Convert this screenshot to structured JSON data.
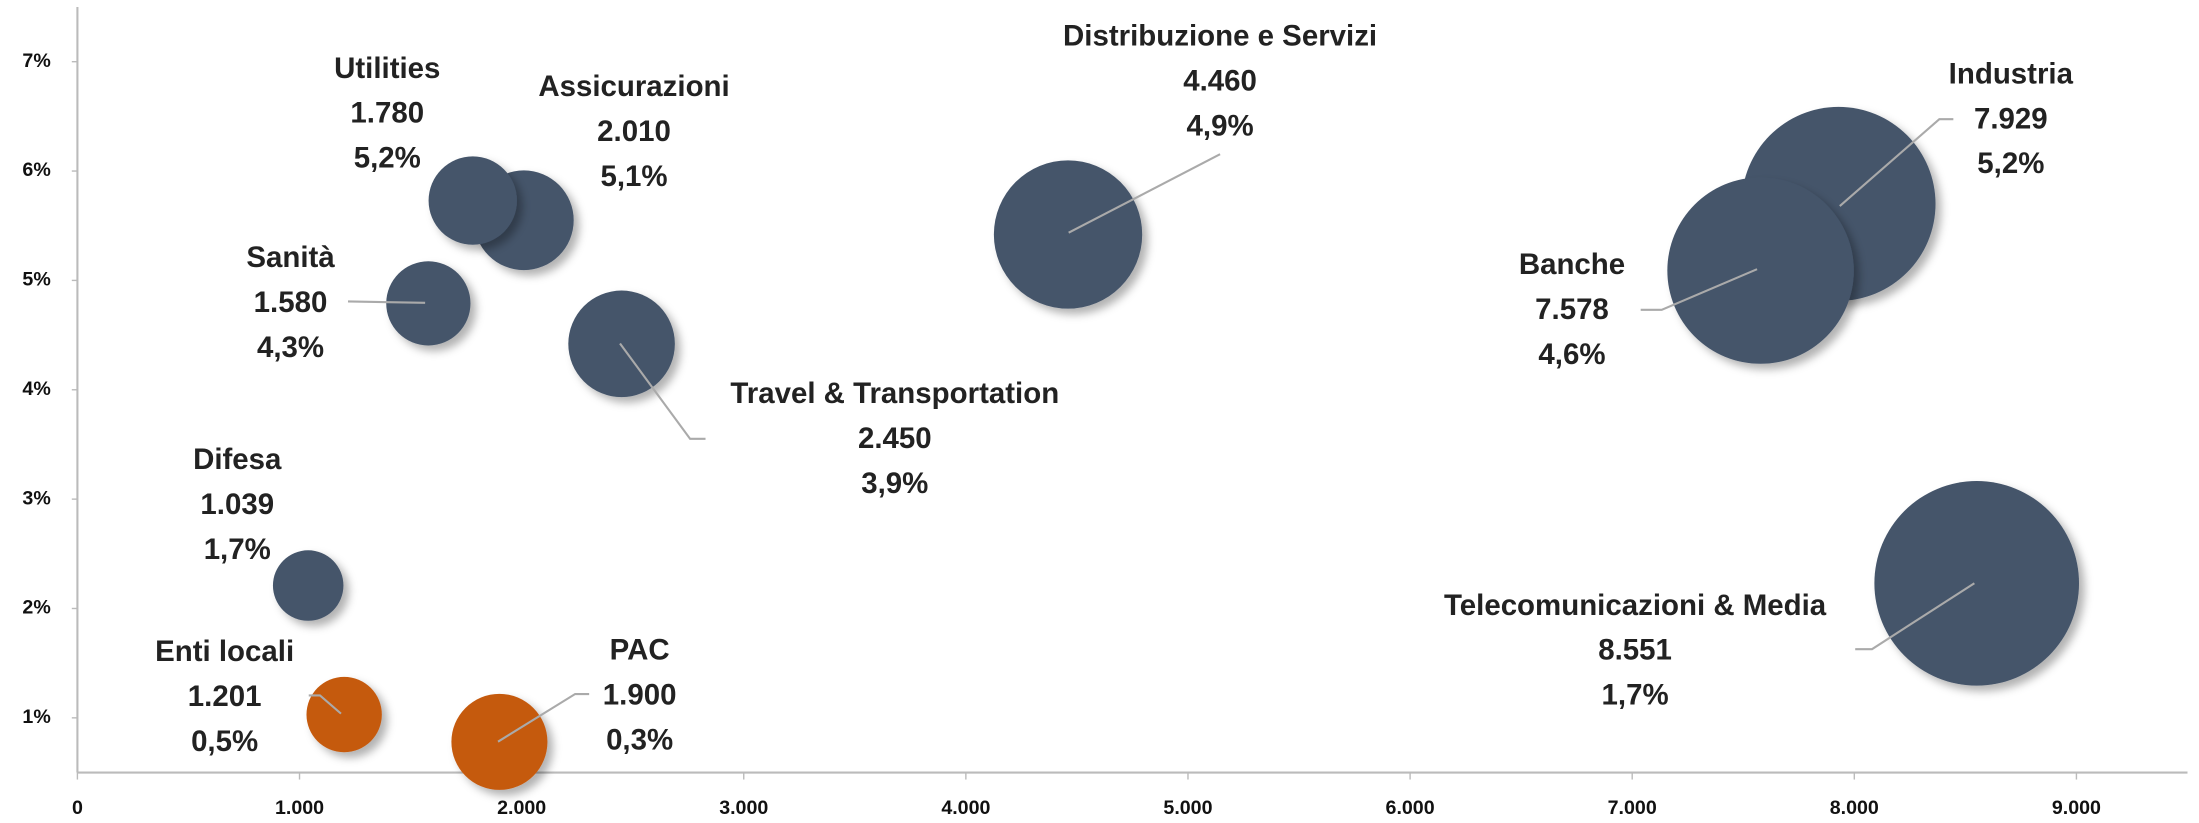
{
  "chart_data": {
    "type": "bubble",
    "categories": [
      "Utilities",
      "Assicurazioni",
      "Sanità",
      "Travel & Transportation",
      "Distribuzione e Servizi",
      "Industria",
      "Banche",
      "Telecomunicazioni  & Media",
      "Difesa",
      "Enti locali",
      "PAC"
    ],
    "x": [
      1780,
      2010,
      1580,
      2450,
      4460,
      7929,
      7578,
      8551,
      1039,
      1201,
      1900
    ],
    "x_labels": [
      "1.780",
      "2.010",
      "1.580",
      "2.450",
      "4.460",
      "7.929",
      "7.578",
      "8.551",
      "1.039",
      "1.201",
      "1.900"
    ],
    "y": [
      5.73,
      5.55,
      4.79,
      4.42,
      5.42,
      5.7,
      5.09,
      2.23,
      2.21,
      1.03,
      0.78
    ],
    "sizes": [
      11,
      14,
      10,
      16,
      31,
      53,
      49,
      59,
      7,
      8,
      13
    ],
    "growth": [
      5.2,
      5.1,
      4.3,
      3.9,
      4.9,
      5.2,
      4.6,
      1.7,
      1.7,
      0.5,
      0.3
    ],
    "growth_labels": [
      "5,2%",
      "5,1%",
      "4,3%",
      "3,9%",
      "4,9%",
      "5,2%",
      "4,6%",
      "1,7%",
      "1,7%",
      "0,5%",
      "0,3%"
    ],
    "colors": [
      "#44546a",
      "#44546a",
      "#44546a",
      "#44546a",
      "#44546a",
      "#44546a",
      "#44546a",
      "#44546a",
      "#44546a",
      "#c55a11",
      "#c55a11"
    ],
    "xlim": [
      0,
      9500
    ],
    "xticks": [
      0,
      {
        "value": 1000,
        "label": "1.000"
      },
      {
        "value": 2000,
        "label": "2.000"
      },
      {
        "value": 3000,
        "label": "3.000"
      },
      {
        "value": 4000,
        "label": "4.000"
      },
      {
        "value": 5000,
        "label": "5.000"
      },
      {
        "value": 6000,
        "label": "6.000"
      },
      {
        "value": 7000,
        "label": "7.000"
      },
      {
        "value": 8000,
        "label": "8.000"
      },
      {
        "value": 9000,
        "label": "9.000"
      }
    ],
    "ylim": [
      0.5,
      7.5
    ],
    "yticks": [
      {
        "value": 1,
        "label": "1%"
      },
      {
        "value": 2,
        "label": "2%"
      },
      {
        "value": 3,
        "label": "3%"
      },
      {
        "value": 4,
        "label": "4%"
      },
      {
        "value": 5,
        "label": "5%"
      },
      {
        "value": 6,
        "label": "6%"
      },
      {
        "value": 7,
        "label": "7%"
      }
    ]
  }
}
